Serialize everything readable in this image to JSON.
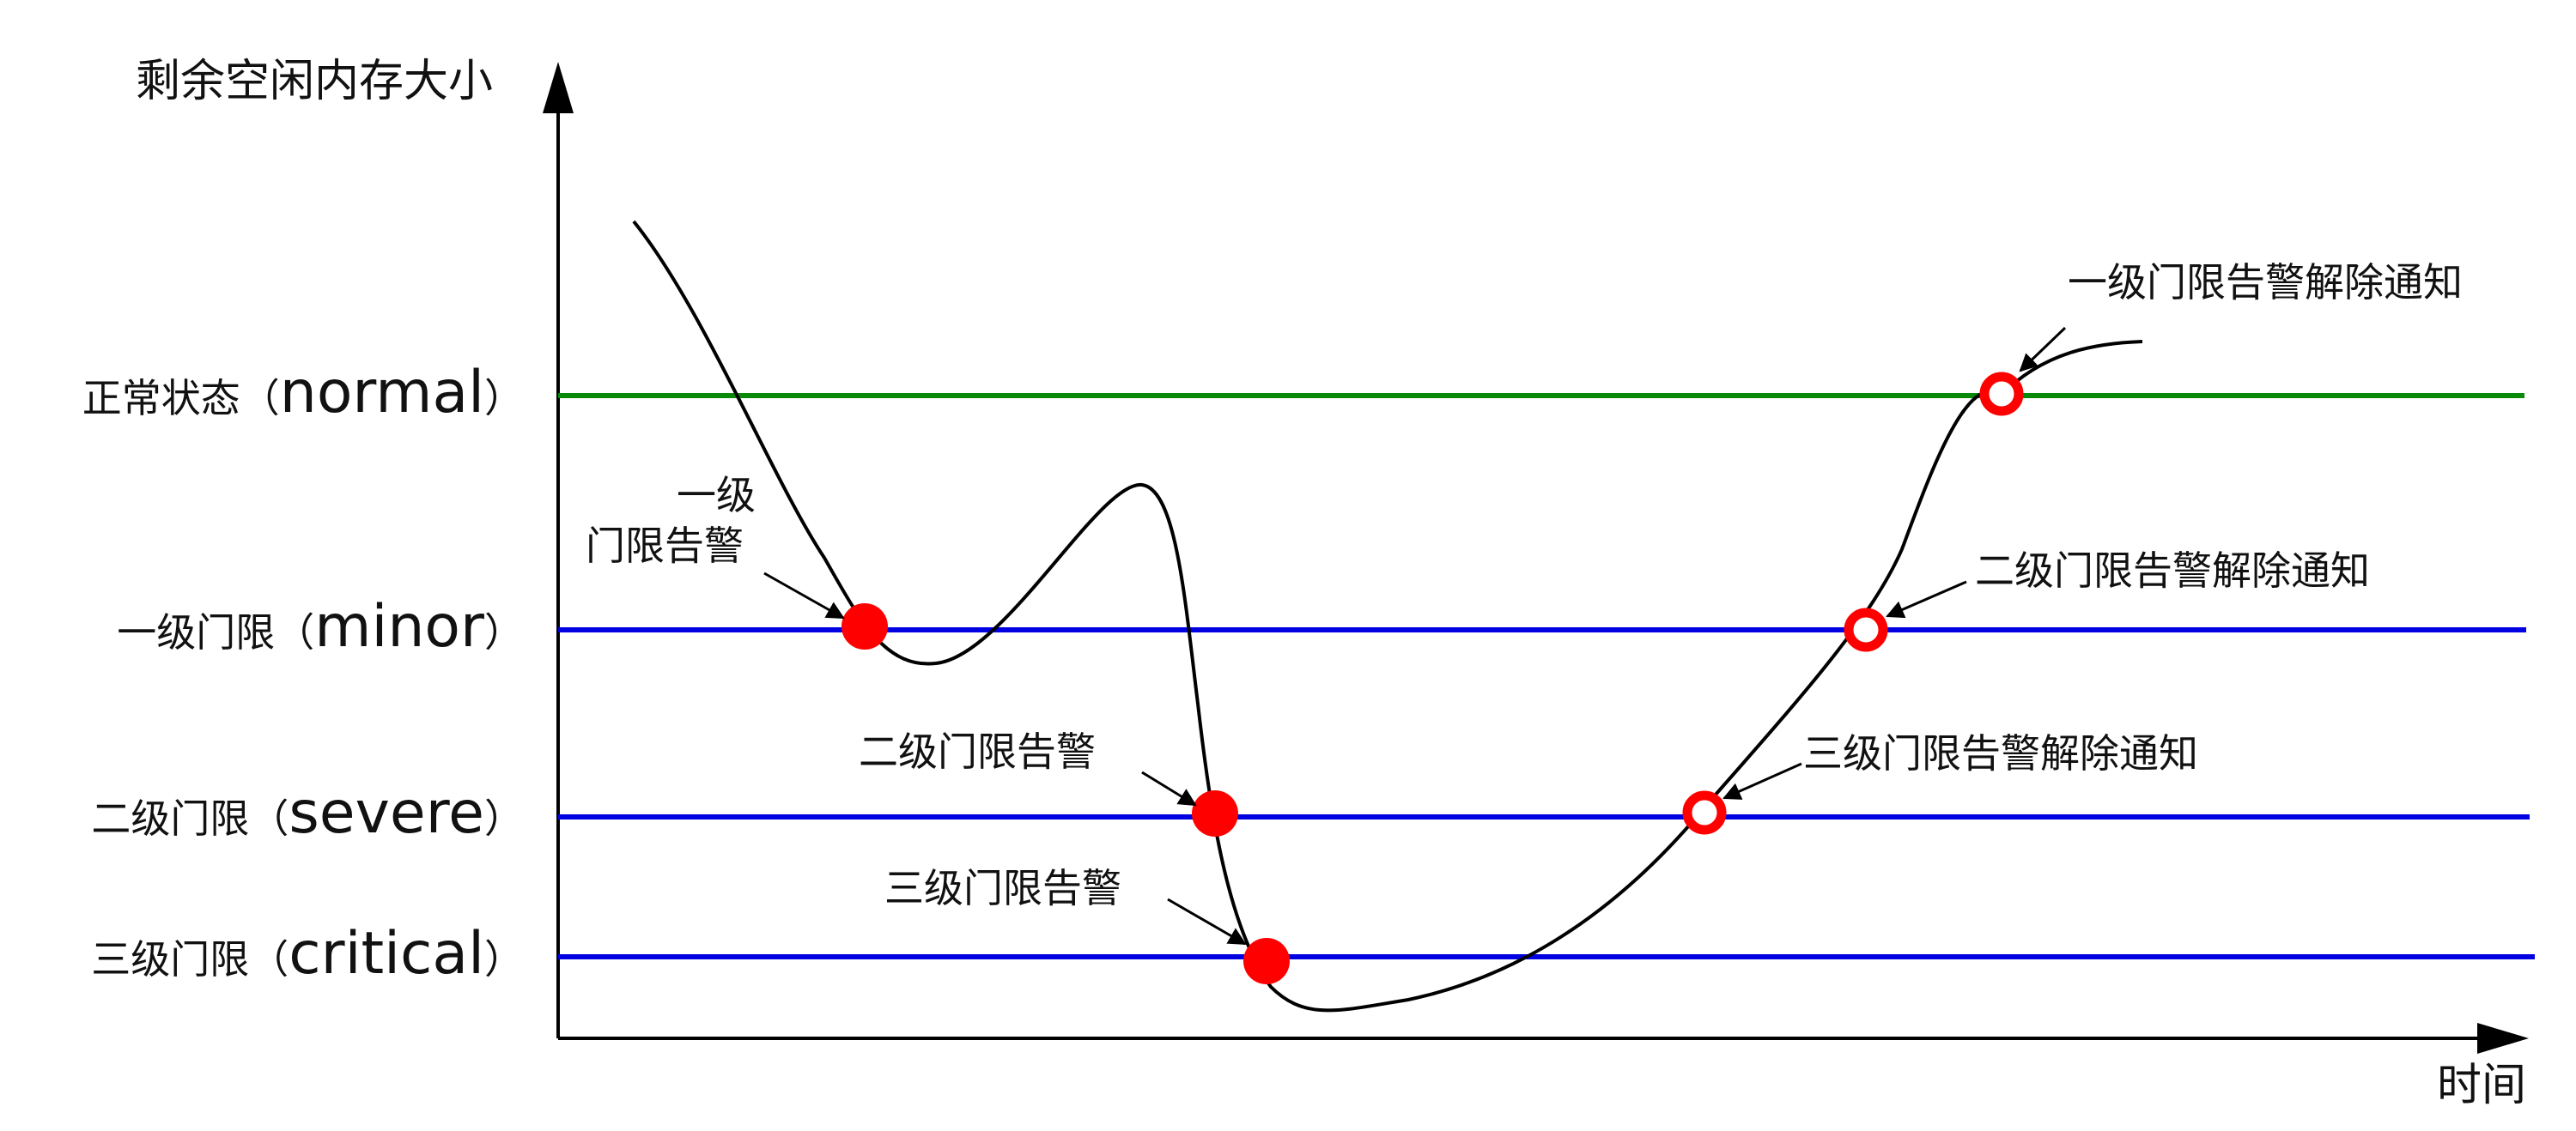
{
  "axes": {
    "y_title": "剩余空闲内存大小",
    "x_title": "时间"
  },
  "levels": [
    {
      "key": "normal",
      "label_cn": "正常状态（",
      "label_en": "normal",
      "label_end": "）",
      "color": "#0a8a0a"
    },
    {
      "key": "minor",
      "label_cn": "一级门限（",
      "label_en": "minor",
      "label_end": "）",
      "color": "#0000e0"
    },
    {
      "key": "severe",
      "label_cn": "二级门限（",
      "label_en": "severe",
      "label_end": "）",
      "color": "#0000e0"
    },
    {
      "key": "critical",
      "label_cn": "三级门限（",
      "label_en": "critical",
      "label_end": "）",
      "color": "#0000e0"
    }
  ],
  "annotations": {
    "minor_alarm_line1": "一级",
    "minor_alarm_line2": "门限告警",
    "severe_alarm": "二级门限告警",
    "critical_alarm": "三级门限告警",
    "minor_clear": "一级门限告警解除通知",
    "severe_clear": "二级门限告警解除通知",
    "critical_clear": "三级门限告警解除通知"
  },
  "colors": {
    "axis": "#000000",
    "curve": "#000000",
    "alarm_marker": "#ff0000",
    "clear_marker_ring": "#ff0000",
    "clear_marker_fill": "#ffffff"
  }
}
